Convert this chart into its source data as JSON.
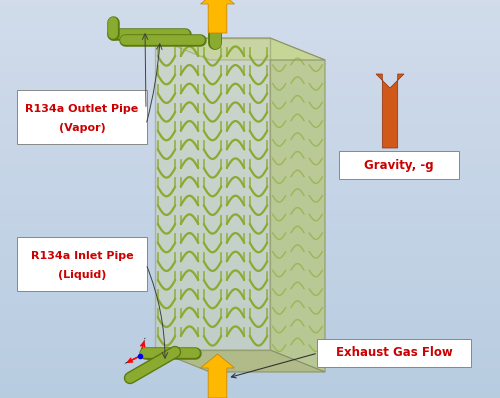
{
  "outlet_label_line1": "R134a Outlet Pipe",
  "outlet_label_line2": "(Vapor)",
  "inlet_label_line1": "R134a Inlet Pipe",
  "inlet_label_line2": "(Liquid)",
  "gravity_label": "Gravity, -g",
  "exhaust_label": "Exhaust Gas Flow",
  "label_color": "#cc0000",
  "arrow_yellow": "#FFB800",
  "arrow_orange": "#D05818",
  "coil_color": "#8aaa30",
  "coil_color_dark": "#6a8a18",
  "body_face_color": "#c8d0a0",
  "body_side_color": "#b8c090",
  "body_top_color": "#d8e0b0",
  "body_edge_color": "#889060",
  "pipe_color": "#8aaa30",
  "pipe_dark": "#5a7a10",
  "bg_left": "#b8cce0",
  "bg_right": "#d0dce8"
}
